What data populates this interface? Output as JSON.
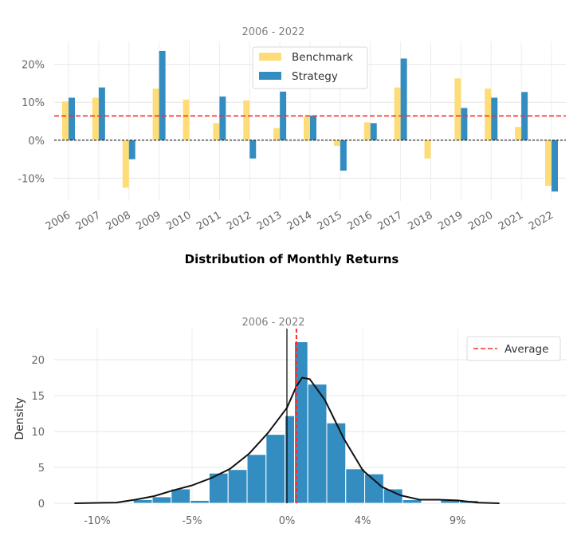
{
  "chart_data": [
    {
      "type": "bar",
      "subtitle": "2006 - 2022",
      "categories": [
        "2006",
        "2007",
        "2008",
        "2009",
        "2010",
        "2011",
        "2012",
        "2013",
        "2014",
        "2015",
        "2016",
        "2017",
        "2018",
        "2019",
        "2020",
        "2021",
        "2022"
      ],
      "series": [
        {
          "name": "Benchmark",
          "color": "#fedd78",
          "values": [
            10.2,
            11.2,
            -12.5,
            13.6,
            10.7,
            4.5,
            10.5,
            3.2,
            6.2,
            -1.5,
            4.7,
            13.9,
            -4.8,
            16.3,
            13.6,
            3.5,
            -12.0
          ]
        },
        {
          "name": "Strategy",
          "color": "#348dc1",
          "values": [
            11.2,
            13.9,
            -5.0,
            23.5,
            0.0,
            11.5,
            -4.8,
            12.8,
            6.5,
            -8.0,
            4.5,
            21.5,
            0.0,
            8.5,
            11.2,
            12.7,
            -13.5
          ]
        }
      ],
      "average_line": 6.4,
      "ylim": [
        -16,
        26
      ],
      "yticks": [
        -10,
        0,
        10,
        20
      ],
      "ytick_labels": [
        "-10%",
        "0%",
        "10%",
        "20%"
      ],
      "legend_placement": "top-center",
      "grid": true
    },
    {
      "type": "histogram",
      "title": "Distribution of Monthly Returns",
      "subtitle": "2006 - 2022",
      "ylabel": "Density",
      "bins": [
        {
          "x0": -8.1,
          "x1": -7.1,
          "density": 0.5
        },
        {
          "x0": -7.1,
          "x1": -6.1,
          "density": 0.9
        },
        {
          "x0": -6.1,
          "x1": -5.1,
          "density": 2.0
        },
        {
          "x0": -5.1,
          "x1": -4.1,
          "density": 0.4
        },
        {
          "x0": -4.1,
          "x1": -3.1,
          "density": 4.2
        },
        {
          "x0": -3.1,
          "x1": -2.1,
          "density": 4.7
        },
        {
          "x0": -2.1,
          "x1": -1.1,
          "density": 6.8
        },
        {
          "x0": -1.1,
          "x1": -0.1,
          "density": 9.6
        },
        {
          "x0": -0.1,
          "x1": 0.4,
          "density": 12.2
        },
        {
          "x0": 0.4,
          "x1": 1.1,
          "density": 22.5
        },
        {
          "x0": 1.1,
          "x1": 2.1,
          "density": 16.6
        },
        {
          "x0": 2.1,
          "x1": 3.1,
          "density": 11.2
        },
        {
          "x0": 3.1,
          "x1": 4.1,
          "density": 4.8
        },
        {
          "x0": 4.1,
          "x1": 5.1,
          "density": 4.1
        },
        {
          "x0": 5.1,
          "x1": 6.1,
          "density": 2.0
        },
        {
          "x0": 6.1,
          "x1": 7.1,
          "density": 0.5
        },
        {
          "x0": 7.1,
          "x1": 8.1,
          "density": 0.0
        },
        {
          "x0": 8.1,
          "x1": 9.1,
          "density": 0.5
        },
        {
          "x0": 9.1,
          "x1": 10.1,
          "density": 0.4
        }
      ],
      "kde": [
        [
          -11.2,
          0.0
        ],
        [
          -9,
          0.1
        ],
        [
          -8,
          0.5
        ],
        [
          -7,
          1.0
        ],
        [
          -6,
          1.8
        ],
        [
          -5,
          2.5
        ],
        [
          -4,
          3.5
        ],
        [
          -3,
          4.8
        ],
        [
          -2,
          6.9
        ],
        [
          -1,
          9.8
        ],
        [
          0,
          13.3
        ],
        [
          0.5,
          16.3
        ],
        [
          0.8,
          17.5
        ],
        [
          1.2,
          17.3
        ],
        [
          2,
          14.4
        ],
        [
          3,
          9.0
        ],
        [
          4,
          4.6
        ],
        [
          5,
          2.3
        ],
        [
          6,
          1.1
        ],
        [
          7,
          0.5
        ],
        [
          8,
          0.5
        ],
        [
          9,
          0.4
        ],
        [
          10,
          0.1
        ],
        [
          11.2,
          0.0
        ]
      ],
      "average_line": 0.5,
      "zero_line": 0,
      "xlim": [
        -11.5,
        12.5
      ],
      "ylim": [
        0,
        24
      ],
      "xticks": [
        -10,
        -5,
        0,
        4,
        9
      ],
      "xtick_labels": [
        "-10%",
        "-5%",
        "0%",
        "4%",
        "9%"
      ],
      "yticks": [
        0,
        5,
        10,
        15,
        20
      ],
      "ytick_labels": [
        "0",
        "5",
        "10",
        "15",
        "20"
      ],
      "legend": [
        "Average"
      ],
      "legend_placement": "top-right",
      "grid": true
    }
  ]
}
